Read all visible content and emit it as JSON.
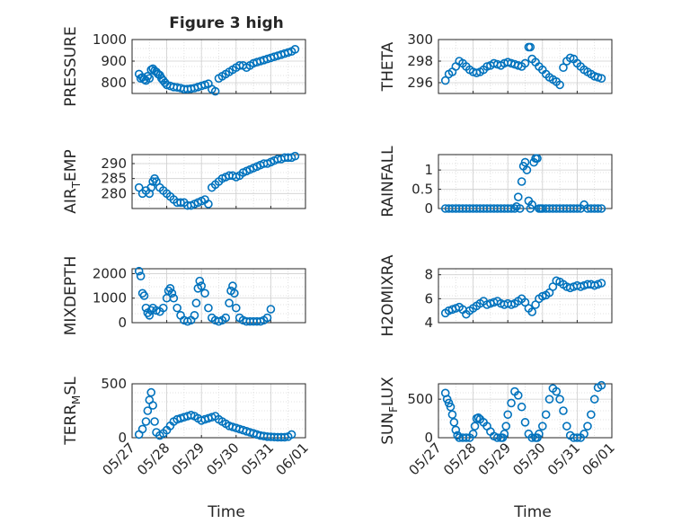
{
  "title": "Figure 3 high",
  "x_ticks": [
    "05/27",
    "05/28",
    "05/29",
    "05/30",
    "05/31",
    "06/01"
  ],
  "x_label": "Time",
  "marker_color": "#0072BD",
  "chart_data": [
    {
      "type": "scatter",
      "ylabel": "PRESSURE",
      "xlim": [
        0,
        5
      ],
      "ylim": [
        750,
        1000
      ],
      "yticks": [
        800,
        900,
        1000
      ],
      "x": [
        0.2,
        0.25,
        0.3,
        0.35,
        0.4,
        0.45,
        0.5,
        0.55,
        0.6,
        0.65,
        0.7,
        0.75,
        0.8,
        0.85,
        0.9,
        0.95,
        1.0,
        1.1,
        1.2,
        1.3,
        1.4,
        1.5,
        1.6,
        1.7,
        1.8,
        1.9,
        2.0,
        2.1,
        2.2,
        2.3,
        2.4,
        2.5,
        2.6,
        2.7,
        2.8,
        2.9,
        3.0,
        3.1,
        3.2,
        3.3,
        3.4,
        3.5,
        3.6,
        3.7,
        3.8,
        3.9,
        4.0,
        4.1,
        4.2,
        4.3,
        4.4,
        4.5,
        4.6,
        4.7
      ],
      "y": [
        840,
        820,
        825,
        815,
        810,
        830,
        820,
        860,
        865,
        855,
        850,
        840,
        835,
        820,
        810,
        800,
        790,
        785,
        780,
        778,
        775,
        770,
        770,
        772,
        775,
        780,
        785,
        790,
        795,
        770,
        760,
        820,
        830,
        840,
        850,
        860,
        870,
        880,
        880,
        870,
        880,
        890,
        895,
        900,
        905,
        910,
        915,
        920,
        925,
        930,
        935,
        940,
        945,
        955
      ]
    },
    {
      "type": "scatter",
      "ylabel": "THETA",
      "xlim": [
        0,
        5
      ],
      "ylim": [
        295,
        300
      ],
      "yticks": [
        296,
        298,
        300
      ],
      "x": [
        0.2,
        0.3,
        0.4,
        0.5,
        0.6,
        0.7,
        0.8,
        0.9,
        1.0,
        1.1,
        1.2,
        1.3,
        1.4,
        1.5,
        1.6,
        1.7,
        1.8,
        1.9,
        2.0,
        2.1,
        2.2,
        2.3,
        2.4,
        2.5,
        2.6,
        2.65,
        2.7,
        2.8,
        2.9,
        3.0,
        3.1,
        3.2,
        3.3,
        3.4,
        3.5,
        3.6,
        3.7,
        3.8,
        3.9,
        4.0,
        4.1,
        4.2,
        4.3,
        4.4,
        4.5,
        4.6,
        4.7
      ],
      "y": [
        296.2,
        296.8,
        297.0,
        297.5,
        298.0,
        297.8,
        297.5,
        297.2,
        297.0,
        296.9,
        297.0,
        297.2,
        297.5,
        297.6,
        297.8,
        297.7,
        297.6,
        297.8,
        297.9,
        297.8,
        297.7,
        297.6,
        297.5,
        297.8,
        299.3,
        299.3,
        298.2,
        297.9,
        297.5,
        297.2,
        296.8,
        296.5,
        296.3,
        296.1,
        295.8,
        297.4,
        298.0,
        298.3,
        298.2,
        297.8,
        297.5,
        297.2,
        297.0,
        296.8,
        296.6,
        296.5,
        296.4
      ]
    },
    {
      "type": "scatter",
      "ylabel": "AIR_TEMP",
      "xlim": [
        0,
        5
      ],
      "ylim": [
        275,
        293
      ],
      "yticks": [
        280,
        285,
        290
      ],
      "x": [
        0.2,
        0.3,
        0.4,
        0.5,
        0.55,
        0.6,
        0.65,
        0.7,
        0.8,
        0.9,
        1.0,
        1.1,
        1.2,
        1.3,
        1.4,
        1.5,
        1.6,
        1.7,
        1.8,
        1.9,
        2.0,
        2.1,
        2.2,
        2.3,
        2.4,
        2.5,
        2.6,
        2.7,
        2.8,
        2.9,
        3.0,
        3.1,
        3.2,
        3.3,
        3.4,
        3.5,
        3.6,
        3.7,
        3.8,
        3.9,
        4.0,
        4.1,
        4.2,
        4.3,
        4.4,
        4.5,
        4.6,
        4.7
      ],
      "y": [
        282,
        280,
        281,
        280,
        282,
        284,
        285,
        284,
        282,
        281,
        280,
        279,
        278,
        277,
        277,
        277,
        276,
        276,
        276.5,
        277,
        277.5,
        278,
        276.5,
        282,
        283,
        284,
        285,
        285.5,
        286,
        286,
        285.5,
        286,
        287,
        287.5,
        288,
        288.5,
        289,
        289.5,
        290,
        290,
        290.5,
        291,
        291.5,
        291.5,
        292,
        292,
        292,
        292.5
      ]
    },
    {
      "type": "scatter",
      "ylabel": "RAINFALL",
      "xlim": [
        0,
        5
      ],
      "ylim": [
        0,
        1.4
      ],
      "yticks": [
        0,
        0.5,
        1
      ],
      "x": [
        0.2,
        0.3,
        0.4,
        0.5,
        0.6,
        0.7,
        0.8,
        0.9,
        1.0,
        1.1,
        1.2,
        1.3,
        1.4,
        1.5,
        1.6,
        1.7,
        1.8,
        1.9,
        2.0,
        2.1,
        2.2,
        2.25,
        2.3,
        2.35,
        2.4,
        2.45,
        2.5,
        2.55,
        2.6,
        2.65,
        2.7,
        2.75,
        2.8,
        2.85,
        2.9,
        2.95,
        3.0,
        3.1,
        3.2,
        3.3,
        3.4,
        3.5,
        3.6,
        3.7,
        3.8,
        3.9,
        4.0,
        4.1,
        4.2,
        4.3,
        4.4,
        4.5,
        4.6,
        4.7
      ],
      "y": [
        0,
        0,
        0,
        0,
        0,
        0,
        0,
        0,
        0,
        0,
        0,
        0,
        0,
        0,
        0,
        0,
        0,
        0,
        0,
        0,
        0,
        0.05,
        0.3,
        0,
        0.7,
        1.1,
        1.2,
        1.0,
        0.2,
        0,
        0.1,
        1.2,
        1.3,
        1.3,
        0,
        0,
        0,
        0,
        0,
        0,
        0,
        0,
        0,
        0,
        0,
        0,
        0,
        0,
        0.1,
        0,
        0,
        0,
        0,
        0
      ]
    },
    {
      "type": "scatter",
      "ylabel": "MIXDEPTH",
      "xlim": [
        0,
        5
      ],
      "ylim": [
        0,
        2200
      ],
      "yticks": [
        0,
        1000,
        2000
      ],
      "x": [
        0.2,
        0.25,
        0.3,
        0.35,
        0.4,
        0.45,
        0.5,
        0.55,
        0.6,
        0.7,
        0.8,
        0.9,
        1.0,
        1.05,
        1.1,
        1.15,
        1.2,
        1.3,
        1.4,
        1.5,
        1.6,
        1.7,
        1.8,
        1.85,
        1.9,
        1.95,
        2.0,
        2.1,
        2.2,
        2.3,
        2.4,
        2.5,
        2.6,
        2.7,
        2.8,
        2.85,
        2.9,
        2.95,
        3.0,
        3.1,
        3.2,
        3.3,
        3.4,
        3.5,
        3.6,
        3.7,
        3.8,
        3.9,
        4.0
      ],
      "y": [
        2100,
        1900,
        1200,
        1100,
        600,
        400,
        300,
        500,
        600,
        500,
        450,
        600,
        1000,
        1300,
        1400,
        1200,
        1000,
        600,
        300,
        100,
        50,
        100,
        300,
        800,
        1400,
        1700,
        1500,
        1200,
        600,
        200,
        100,
        50,
        100,
        200,
        800,
        1300,
        1500,
        1200,
        600,
        200,
        100,
        50,
        50,
        50,
        50,
        50,
        100,
        200,
        550
      ]
    },
    {
      "type": "scatter",
      "ylabel": "H2OMIXRA",
      "xlim": [
        0,
        5
      ],
      "ylim": [
        4,
        8.5
      ],
      "yticks": [
        4,
        6,
        8
      ],
      "x": [
        0.2,
        0.3,
        0.4,
        0.5,
        0.6,
        0.7,
        0.8,
        0.9,
        1.0,
        1.1,
        1.2,
        1.3,
        1.4,
        1.5,
        1.6,
        1.7,
        1.8,
        1.9,
        2.0,
        2.1,
        2.2,
        2.3,
        2.4,
        2.5,
        2.6,
        2.7,
        2.8,
        2.9,
        3.0,
        3.1,
        3.2,
        3.3,
        3.4,
        3.5,
        3.6,
        3.7,
        3.8,
        3.9,
        4.0,
        4.1,
        4.2,
        4.3,
        4.4,
        4.5,
        4.6,
        4.7
      ],
      "y": [
        4.8,
        5.0,
        5.1,
        5.2,
        5.3,
        5.1,
        4.7,
        5.0,
        5.2,
        5.4,
        5.6,
        5.8,
        5.5,
        5.6,
        5.7,
        5.8,
        5.6,
        5.5,
        5.6,
        5.5,
        5.6,
        5.8,
        6.0,
        5.7,
        5.2,
        4.9,
        5.5,
        6.0,
        6.2,
        6.3,
        6.5,
        7.0,
        7.5,
        7.4,
        7.2,
        7.0,
        6.9,
        7.0,
        7.1,
        7.0,
        7.1,
        7.2,
        7.2,
        7.1,
        7.2,
        7.3
      ]
    },
    {
      "type": "scatter",
      "ylabel": "TERR_MSL",
      "xlim": [
        0,
        5
      ],
      "ylim": [
        0,
        500
      ],
      "yticks": [
        0,
        500
      ],
      "x": [
        0.2,
        0.3,
        0.4,
        0.45,
        0.5,
        0.55,
        0.6,
        0.65,
        0.7,
        0.8,
        0.9,
        1.0,
        1.1,
        1.2,
        1.3,
        1.4,
        1.5,
        1.6,
        1.7,
        1.8,
        1.9,
        2.0,
        2.1,
        2.2,
        2.3,
        2.4,
        2.5,
        2.6,
        2.7,
        2.8,
        2.9,
        3.0,
        3.1,
        3.2,
        3.3,
        3.4,
        3.5,
        3.6,
        3.7,
        3.8,
        3.9,
        4.0,
        4.1,
        4.2,
        4.3,
        4.4,
        4.5,
        4.6
      ],
      "y": [
        30,
        80,
        150,
        250,
        350,
        420,
        300,
        150,
        50,
        20,
        40,
        70,
        110,
        150,
        170,
        180,
        190,
        200,
        210,
        200,
        180,
        160,
        170,
        180,
        190,
        200,
        170,
        150,
        130,
        110,
        100,
        90,
        80,
        70,
        60,
        50,
        40,
        30,
        20,
        15,
        10,
        8,
        6,
        5,
        5,
        5,
        10,
        30
      ]
    },
    {
      "type": "scatter",
      "ylabel": "SUN_FLUX",
      "xlim": [
        0,
        5
      ],
      "ylim": [
        0,
        700
      ],
      "yticks": [
        0,
        500
      ],
      "x": [
        0.2,
        0.25,
        0.3,
        0.35,
        0.4,
        0.45,
        0.5,
        0.55,
        0.6,
        0.7,
        0.8,
        0.9,
        1.0,
        1.05,
        1.1,
        1.15,
        1.2,
        1.3,
        1.4,
        1.5,
        1.6,
        1.7,
        1.8,
        1.85,
        1.9,
        1.95,
        2.0,
        2.1,
        2.2,
        2.3,
        2.4,
        2.5,
        2.6,
        2.7,
        2.8,
        2.85,
        2.9,
        3.0,
        3.1,
        3.2,
        3.3,
        3.4,
        3.5,
        3.6,
        3.7,
        3.8,
        3.9,
        4.0,
        4.1,
        4.2,
        4.3,
        4.4,
        4.5,
        4.6,
        4.7
      ],
      "y": [
        580,
        500,
        450,
        400,
        300,
        200,
        100,
        30,
        0,
        0,
        0,
        0,
        50,
        150,
        250,
        260,
        240,
        200,
        150,
        80,
        20,
        0,
        0,
        0,
        50,
        150,
        300,
        450,
        600,
        550,
        400,
        200,
        50,
        0,
        0,
        0,
        50,
        150,
        300,
        500,
        640,
        600,
        500,
        350,
        150,
        30,
        0,
        0,
        0,
        50,
        150,
        300,
        500,
        650,
        680
      ]
    }
  ]
}
